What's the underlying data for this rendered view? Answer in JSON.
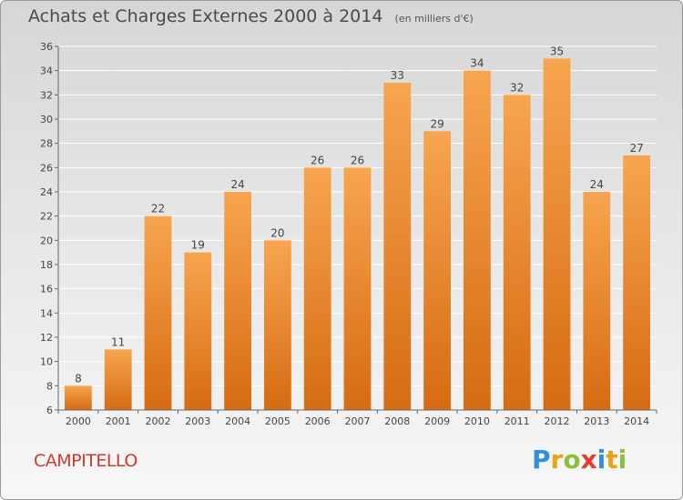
{
  "title": "Achats et Charges Externes 2000 à 2014",
  "unit_note": "(en milliers d'€)",
  "commune": "CAMPITELLO",
  "logo": {
    "text": "Proxiti",
    "letters": [
      {
        "ch": "P",
        "color": "#2f8fd8"
      },
      {
        "ch": "r",
        "color": "#e8a317"
      },
      {
        "ch": "o",
        "color": "#8bc03c"
      },
      {
        "ch": "x",
        "color": "#e53d2f"
      },
      {
        "ch": "i",
        "color": "#2f8fd8"
      },
      {
        "ch": "t",
        "color": "#e8a317"
      },
      {
        "ch": "i",
        "color": "#8bc03c"
      }
    ]
  },
  "colors": {
    "bar_light": "#f7a54f",
    "bar_dark": "#d66b12",
    "grid": "#ffffff",
    "axis": "#666666",
    "text": "#444444"
  },
  "chart_data": {
    "type": "bar",
    "title": "Achats et Charges Externes 2000 à 2014",
    "categories": [
      "2000",
      "2001",
      "2002",
      "2003",
      "2004",
      "2005",
      "2006",
      "2007",
      "2008",
      "2009",
      "2010",
      "2011",
      "2012",
      "2013",
      "2014"
    ],
    "values": [
      8,
      11,
      22,
      19,
      24,
      20,
      26,
      26,
      33,
      29,
      34,
      32,
      35,
      24,
      27
    ],
    "ylim": [
      6,
      36
    ],
    "yticks": [
      6,
      8,
      10,
      12,
      14,
      16,
      18,
      20,
      22,
      24,
      26,
      28,
      30,
      32,
      34,
      36
    ],
    "grid": true,
    "data_labels": true
  }
}
